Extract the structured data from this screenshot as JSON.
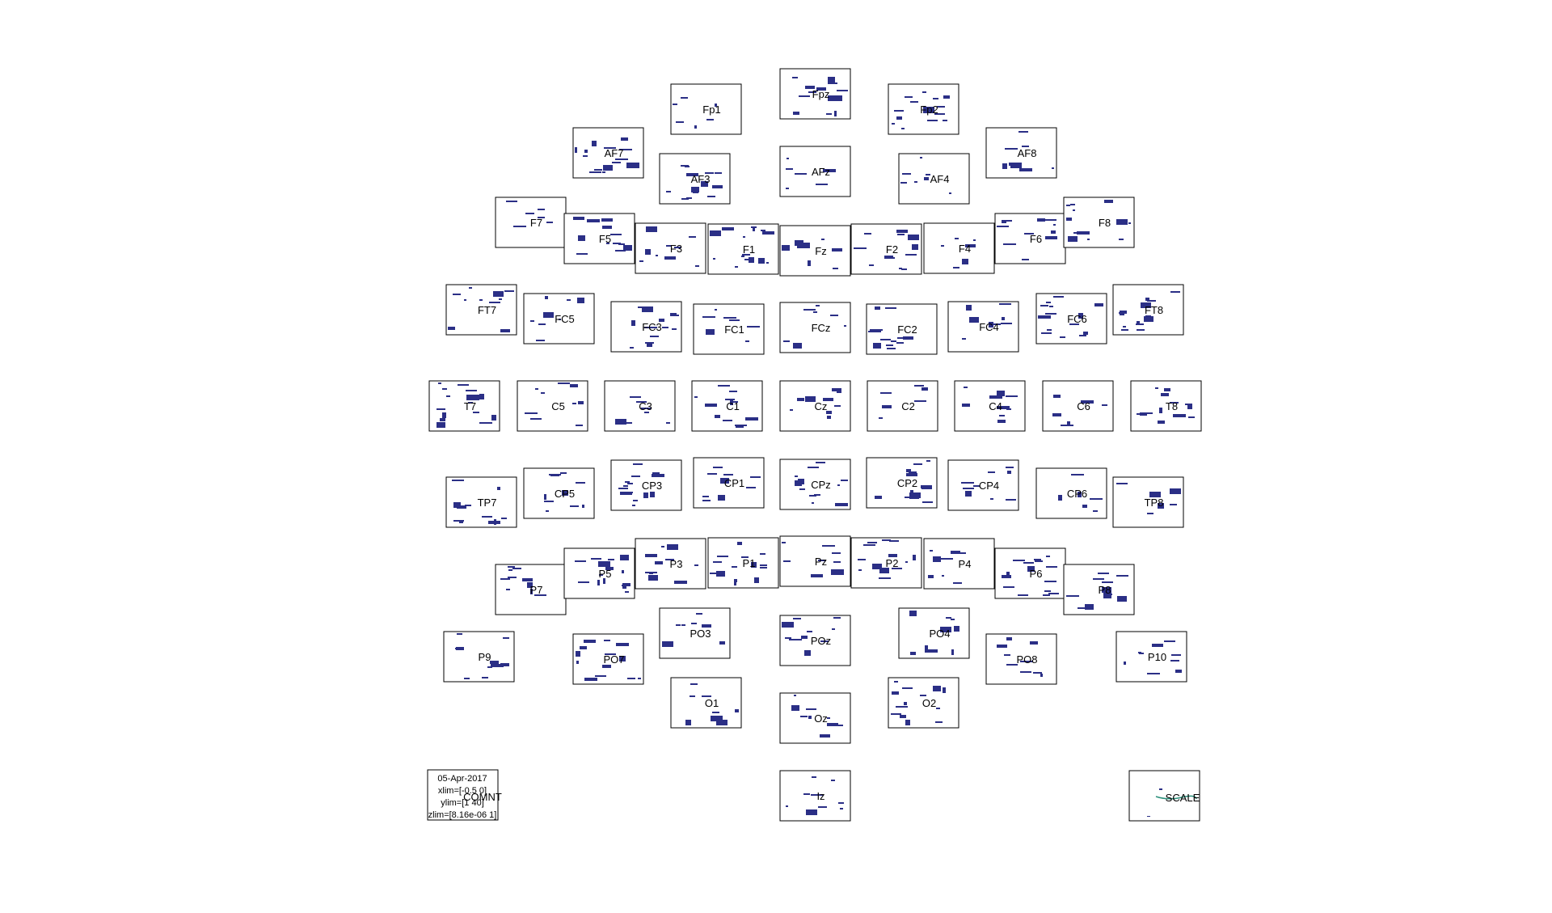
{
  "chart_data": {
    "type": "heatmap",
    "title": "",
    "xlabel": "",
    "ylabel": "",
    "grid": false,
    "colors": {
      "axes": "#000000",
      "cell_masked": "#2b2f86",
      "background": "#ffffff",
      "scale_line": "#2a8f7a"
    },
    "channels": [
      "Fp1",
      "Fpz",
      "Fp2",
      "AF7",
      "AF3",
      "AFz",
      "AF4",
      "AF8",
      "F7",
      "F5",
      "F3",
      "F1",
      "Fz",
      "F2",
      "F4",
      "F6",
      "F8",
      "FT7",
      "FC5",
      "FC3",
      "FC1",
      "FCz",
      "FC2",
      "FC4",
      "FC6",
      "FT8",
      "T7",
      "C5",
      "C3",
      "C1",
      "Cz",
      "C2",
      "C4",
      "C6",
      "T8",
      "TP7",
      "CP5",
      "CP3",
      "CP1",
      "CPz",
      "CP2",
      "CP4",
      "CP6",
      "TP8",
      "P7",
      "P5",
      "P3",
      "P1",
      "Pz",
      "P2",
      "P4",
      "P6",
      "P8",
      "P9",
      "PO7",
      "PO3",
      "POz",
      "PO4",
      "PO8",
      "P10",
      "O1",
      "Oz",
      "O2",
      "Iz"
    ],
    "comment_panel": {
      "date": "05-Apr-2017",
      "xlim": "xlim=[-0.5 0]",
      "ylim": "ylim=[1 40]",
      "zlim": "zlim=[8.16e-06 1]",
      "label": "COMNT"
    },
    "scale_panel": {
      "label": "SCALE"
    }
  }
}
